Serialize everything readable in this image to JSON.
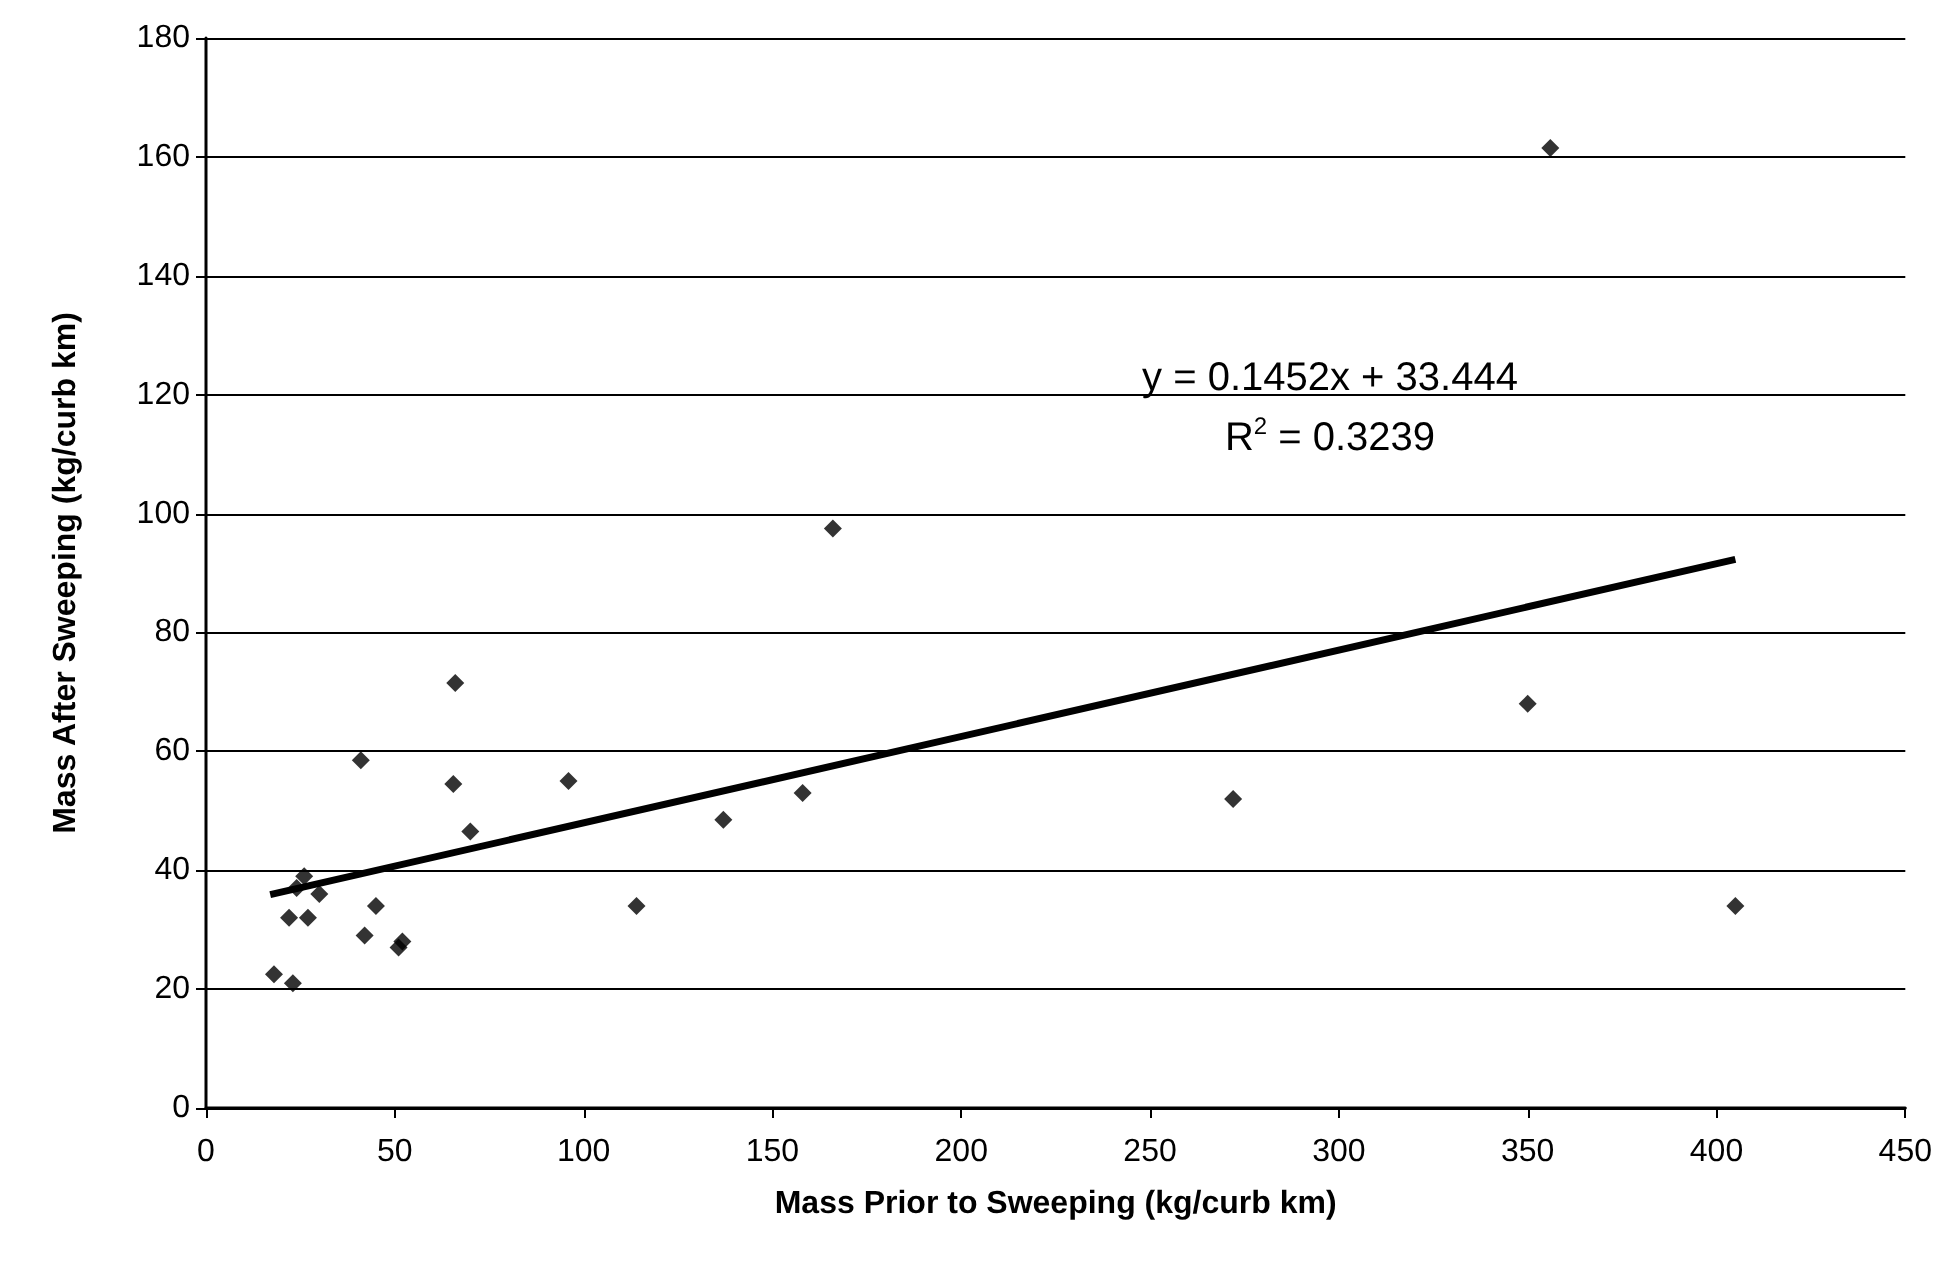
{
  "chart_data": {
    "type": "scatter",
    "xlabel": "Mass Prior to Sweeping (kg/curb km)",
    "ylabel": "Mass After Sweeping (kg/curb km)",
    "xlim": [
      0,
      450
    ],
    "xticks": [
      0,
      50,
      100,
      150,
      200,
      250,
      300,
      350,
      400,
      450
    ],
    "ylim": [
      0,
      180
    ],
    "yticks": [
      0,
      20,
      40,
      60,
      80,
      100,
      120,
      140,
      160,
      180
    ],
    "grid": "y",
    "series": [
      {
        "color": "#000000",
        "marker": "diamond",
        "x": [
          66,
          41,
          65.5,
          96,
          70,
          137,
          24,
          26,
          30,
          22,
          27,
          45,
          42,
          51,
          52,
          114,
          18,
          23,
          158,
          166,
          272,
          350,
          356,
          405
        ],
        "values": [
          71.5,
          58.5,
          54.5,
          55,
          46.5,
          48.5,
          37,
          39,
          36,
          32,
          32,
          34,
          29,
          27,
          28,
          34,
          22.5,
          21,
          53,
          97.5,
          52,
          68,
          161.5,
          34
        ]
      },
      {
        "type": "line",
        "color": "#000000",
        "x": [
          17,
          405
        ],
        "values": [
          35.9,
          92.3
        ]
      }
    ],
    "annotations": [
      "y = 0.1452x + 33.444",
      "R$^{2}$ = 0.3239"
    ]
  }
}
